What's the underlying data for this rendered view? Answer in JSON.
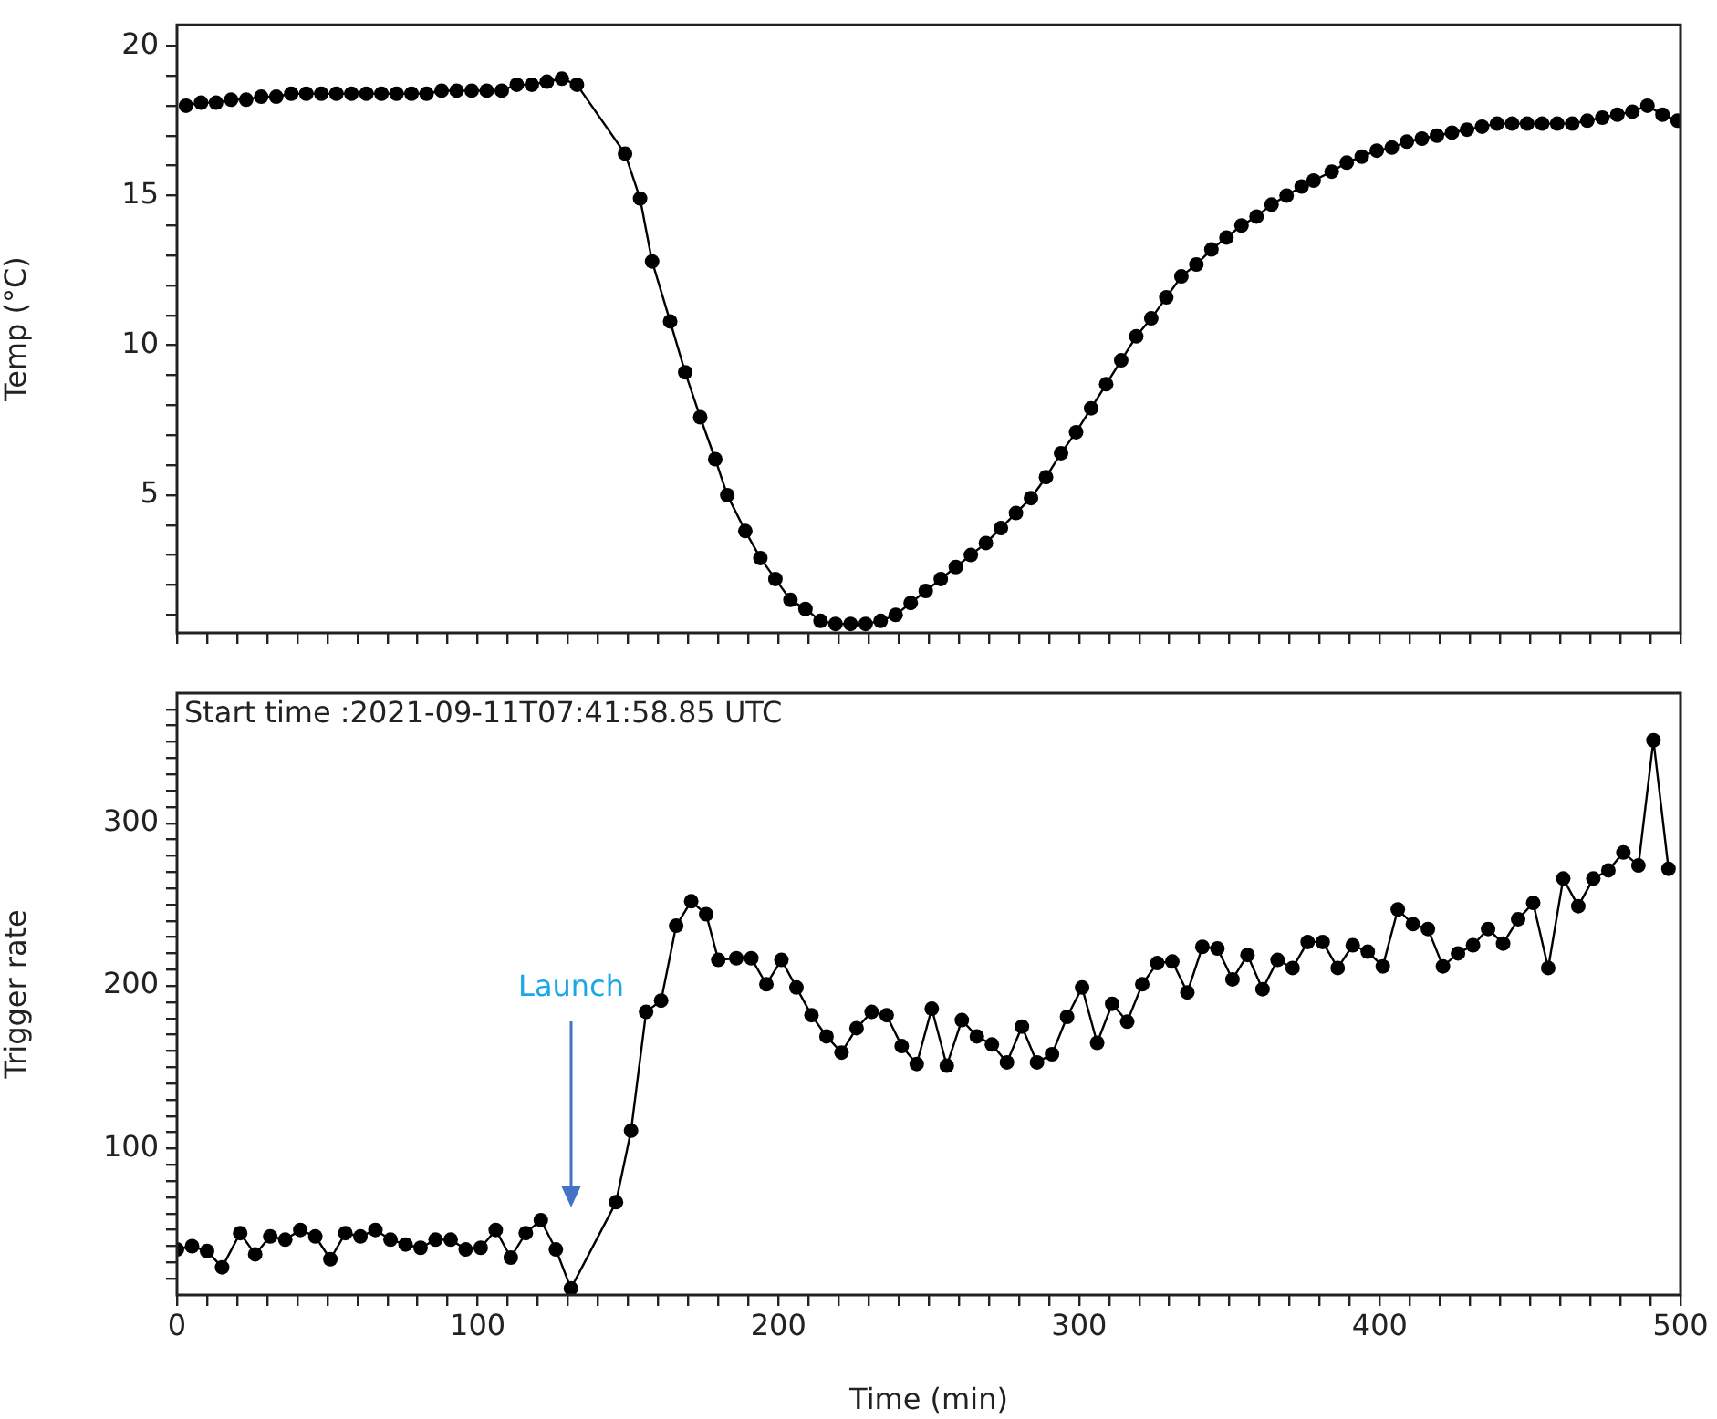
{
  "chart_data": [
    {
      "type": "line",
      "ylabel": "Temp (°C)",
      "color": "#000000",
      "marker": "circle",
      "line_style": "solid",
      "tick_labels": "y",
      "x": [
        3,
        8,
        13,
        18,
        23,
        28,
        33,
        38,
        43,
        48,
        53,
        58,
        63,
        68,
        73,
        78,
        83,
        88,
        93,
        98,
        103,
        108,
        113,
        118,
        123,
        128,
        133,
        149,
        154,
        158,
        164,
        169,
        174,
        179,
        183,
        189,
        194,
        199,
        204,
        209,
        214,
        219,
        224,
        229,
        234,
        239,
        244,
        249,
        254,
        259,
        264,
        269,
        274,
        279,
        284,
        289,
        294,
        299,
        304,
        309,
        314,
        319,
        324,
        329,
        334,
        339,
        344,
        349,
        354,
        359,
        364,
        369,
        374,
        378,
        384,
        389,
        394,
        399,
        404,
        409,
        414,
        419,
        424,
        429,
        434,
        439,
        444,
        449,
        454,
        459,
        464,
        469,
        474,
        479,
        484,
        489,
        494,
        499
      ],
      "values": [
        18.0,
        18.1,
        18.1,
        18.2,
        18.2,
        18.3,
        18.3,
        18.4,
        18.4,
        18.4,
        18.4,
        18.4,
        18.4,
        18.4,
        18.4,
        18.4,
        18.4,
        18.5,
        18.5,
        18.5,
        18.5,
        18.5,
        18.7,
        18.7,
        18.8,
        18.9,
        18.7,
        16.4,
        14.9,
        12.8,
        10.8,
        9.1,
        7.6,
        6.2,
        5.0,
        3.8,
        2.9,
        2.2,
        1.5,
        1.2,
        0.8,
        0.7,
        0.7,
        0.7,
        0.8,
        1.0,
        1.4,
        1.8,
        2.2,
        2.6,
        3.0,
        3.4,
        3.9,
        4.4,
        4.9,
        5.6,
        6.4,
        7.1,
        7.9,
        8.7,
        9.5,
        10.3,
        10.9,
        11.6,
        12.3,
        12.7,
        13.2,
        13.6,
        14.0,
        14.3,
        14.7,
        15.0,
        15.3,
        15.5,
        15.8,
        16.1,
        16.3,
        16.5,
        16.6,
        16.8,
        16.9,
        17.0,
        17.1,
        17.2,
        17.3,
        17.4,
        17.4,
        17.4,
        17.4,
        17.4,
        17.4,
        17.5,
        17.6,
        17.7,
        17.8,
        18.0,
        17.7,
        17.5
      ],
      "xlim": [
        0,
        500
      ],
      "xticks": [
        0,
        {
          "value": 10,
          "label": null
        },
        {
          "value": 20,
          "label": null
        },
        {
          "value": 30,
          "label": null
        },
        {
          "value": 40,
          "label": null
        },
        {
          "value": 50,
          "label": null
        },
        {
          "value": 60,
          "label": null
        },
        {
          "value": 70,
          "label": null
        },
        {
          "value": 80,
          "label": null
        },
        {
          "value": 90,
          "label": null
        },
        100,
        {
          "value": 110,
          "label": null
        },
        {
          "value": 120,
          "label": null
        },
        {
          "value": 130,
          "label": null
        },
        {
          "value": 140,
          "label": null
        },
        {
          "value": 150,
          "label": null
        },
        {
          "value": 160,
          "label": null
        },
        {
          "value": 170,
          "label": null
        },
        {
          "value": 180,
          "label": null
        },
        {
          "value": 190,
          "label": null
        },
        200,
        {
          "value": 210,
          "label": null
        },
        {
          "value": 220,
          "label": null
        },
        {
          "value": 230,
          "label": null
        },
        {
          "value": 240,
          "label": null
        },
        {
          "value": 250,
          "label": null
        },
        {
          "value": 260,
          "label": null
        },
        {
          "value": 270,
          "label": null
        },
        {
          "value": 280,
          "label": null
        },
        {
          "value": 290,
          "label": null
        },
        300,
        {
          "value": 310,
          "label": null
        },
        {
          "value": 320,
          "label": null
        },
        {
          "value": 330,
          "label": null
        },
        {
          "value": 340,
          "label": null
        },
        {
          "value": 350,
          "label": null
        },
        {
          "value": 360,
          "label": null
        },
        {
          "value": 370,
          "label": null
        },
        {
          "value": 380,
          "label": null
        },
        {
          "value": 390,
          "label": null
        },
        400,
        {
          "value": 410,
          "label": null
        },
        {
          "value": 420,
          "label": null
        },
        {
          "value": 430,
          "label": null
        },
        {
          "value": 440,
          "label": null
        },
        {
          "value": 450,
          "label": null
        },
        {
          "value": 460,
          "label": null
        },
        {
          "value": 470,
          "label": null
        },
        {
          "value": 480,
          "label": null
        },
        {
          "value": 490,
          "label": null
        },
        500
      ],
      "ylim": [
        0.4,
        20.7
      ],
      "yticks": [
        {
          "value": 1,
          "label": null
        },
        {
          "value": 2,
          "label": null
        },
        {
          "value": 3,
          "label": null
        },
        {
          "value": 4,
          "label": null
        },
        5,
        {
          "value": 6,
          "label": null
        },
        {
          "value": 7,
          "label": null
        },
        {
          "value": 8,
          "label": null
        },
        {
          "value": 9,
          "label": null
        },
        10,
        {
          "value": 11,
          "label": null
        },
        {
          "value": 12,
          "label": null
        },
        {
          "value": 13,
          "label": null
        },
        {
          "value": 14,
          "label": null
        },
        15,
        {
          "value": 16,
          "label": null
        },
        {
          "value": 17,
          "label": null
        },
        {
          "value": 18,
          "label": null
        },
        {
          "value": 19,
          "label": null
        },
        20
      ]
    },
    {
      "type": "line",
      "xlabel": "Time (min)",
      "ylabel": "Trigger rate",
      "color": "#000000",
      "marker": "circle",
      "line_style": "solid",
      "annotations": [
        "Start time :2021-09-11T07:41:58.85 UTC",
        "Launch"
      ],
      "x": [
        0,
        5,
        10,
        15,
        21,
        26,
        31,
        36,
        41,
        46,
        51,
        56,
        61,
        66,
        71,
        76,
        81,
        86,
        91,
        96,
        101,
        106,
        111,
        116,
        121,
        126,
        131,
        146,
        151,
        156,
        161,
        166,
        171,
        176,
        180,
        186,
        191,
        196,
        201,
        206,
        211,
        216,
        221,
        226,
        231,
        236,
        241,
        246,
        251,
        256,
        261,
        266,
        271,
        276,
        281,
        286,
        291,
        296,
        301,
        306,
        311,
        316,
        321,
        326,
        331,
        336,
        341,
        346,
        351,
        356,
        361,
        366,
        371,
        376,
        381,
        386,
        391,
        396,
        401,
        406,
        411,
        416,
        421,
        426,
        431,
        436,
        441,
        446,
        451,
        456,
        461,
        466,
        471,
        476,
        481,
        486,
        491,
        496
      ],
      "values": [
        38,
        40,
        37,
        27,
        48,
        35,
        46,
        44,
        50,
        46,
        32,
        48,
        46,
        50,
        44,
        41,
        39,
        44,
        44,
        38,
        39,
        50,
        33,
        48,
        56,
        38,
        14,
        67,
        111,
        184,
        191,
        237,
        252,
        244,
        216,
        217,
        217,
        201,
        216,
        199,
        182,
        169,
        159,
        174,
        184,
        182,
        163,
        152,
        186,
        151,
        179,
        169,
        164,
        153,
        175,
        153,
        158,
        181,
        199,
        165,
        189,
        178,
        201,
        214,
        215,
        196,
        224,
        223,
        204,
        219,
        198,
        216,
        211,
        227,
        227,
        211,
        225,
        221,
        212,
        247,
        238,
        235,
        212,
        220,
        225,
        235,
        226,
        241,
        251,
        211,
        266,
        249,
        266,
        271,
        282,
        274,
        351,
        272
      ],
      "xlim": [
        0,
        500
      ],
      "xticks": [
        0,
        {
          "value": 10,
          "label": null
        },
        {
          "value": 20,
          "label": null
        },
        {
          "value": 30,
          "label": null
        },
        {
          "value": 40,
          "label": null
        },
        {
          "value": 50,
          "label": null
        },
        {
          "value": 60,
          "label": null
        },
        {
          "value": 70,
          "label": null
        },
        {
          "value": 80,
          "label": null
        },
        {
          "value": 90,
          "label": null
        },
        100,
        {
          "value": 110,
          "label": null
        },
        {
          "value": 120,
          "label": null
        },
        {
          "value": 130,
          "label": null
        },
        {
          "value": 140,
          "label": null
        },
        {
          "value": 150,
          "label": null
        },
        {
          "value": 160,
          "label": null
        },
        {
          "value": 170,
          "label": null
        },
        {
          "value": 180,
          "label": null
        },
        {
          "value": 190,
          "label": null
        },
        200,
        {
          "value": 210,
          "label": null
        },
        {
          "value": 220,
          "label": null
        },
        {
          "value": 230,
          "label": null
        },
        {
          "value": 240,
          "label": null
        },
        {
          "value": 250,
          "label": null
        },
        {
          "value": 260,
          "label": null
        },
        {
          "value": 270,
          "label": null
        },
        {
          "value": 280,
          "label": null
        },
        {
          "value": 290,
          "label": null
        },
        300,
        {
          "value": 310,
          "label": null
        },
        {
          "value": 320,
          "label": null
        },
        {
          "value": 330,
          "label": null
        },
        {
          "value": 340,
          "label": null
        },
        {
          "value": 350,
          "label": null
        },
        {
          "value": 360,
          "label": null
        },
        {
          "value": 370,
          "label": null
        },
        {
          "value": 380,
          "label": null
        },
        {
          "value": 390,
          "label": null
        },
        400,
        {
          "value": 410,
          "label": null
        },
        {
          "value": 420,
          "label": null
        },
        {
          "value": 430,
          "label": null
        },
        {
          "value": 440,
          "label": null
        },
        {
          "value": 450,
          "label": null
        },
        {
          "value": 460,
          "label": null
        },
        {
          "value": 470,
          "label": null
        },
        {
          "value": 480,
          "label": null
        },
        {
          "value": 490,
          "label": null
        },
        500
      ],
      "ylim": [
        10,
        380
      ],
      "yticks": [
        {
          "value": 20,
          "label": null
        },
        {
          "value": 30,
          "label": null
        },
        {
          "value": 40,
          "label": null
        },
        {
          "value": 50,
          "label": null
        },
        {
          "value": 60,
          "label": null
        },
        {
          "value": 70,
          "label": null
        },
        {
          "value": 80,
          "label": null
        },
        {
          "value": 90,
          "label": null
        },
        100,
        {
          "value": 110,
          "label": null
        },
        {
          "value": 120,
          "label": null
        },
        {
          "value": 130,
          "label": null
        },
        {
          "value": 140,
          "label": null
        },
        {
          "value": 150,
          "label": null
        },
        {
          "value": 160,
          "label": null
        },
        {
          "value": 170,
          "label": null
        },
        {
          "value": 180,
          "label": null
        },
        {
          "value": 190,
          "label": null
        },
        200,
        {
          "value": 210,
          "label": null
        },
        {
          "value": 220,
          "label": null
        },
        {
          "value": 230,
          "label": null
        },
        {
          "value": 240,
          "label": null
        },
        {
          "value": 250,
          "label": null
        },
        {
          "value": 260,
          "label": null
        },
        {
          "value": 270,
          "label": null
        },
        {
          "value": 280,
          "label": null
        },
        {
          "value": 290,
          "label": null
        },
        300,
        {
          "value": 310,
          "label": null
        },
        {
          "value": 320,
          "label": null
        },
        {
          "value": 330,
          "label": null
        },
        {
          "value": 340,
          "label": null
        },
        {
          "value": 350,
          "label": null
        },
        {
          "value": 360,
          "label": null
        },
        {
          "value": 370,
          "label": null
        }
      ]
    }
  ]
}
